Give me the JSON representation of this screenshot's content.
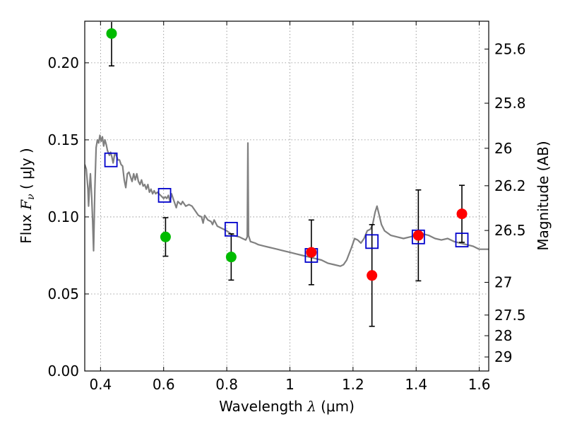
{
  "chart_data": {
    "type": "scatter",
    "title": "",
    "xlabel": "Wavelength  λ (μm)",
    "ylabel": "Flux  Fν  ( μJy )",
    "ylabel_parts": {
      "pre": "Flux  ",
      "sym": "F",
      "sub": "ν",
      "post": "  ( μJy )"
    },
    "xlabel_parts": {
      "pre": "Wavelength  ",
      "sym": "λ",
      "post": " (μm)"
    },
    "y2label": "Magnitude (AB)",
    "xlim": [
      0.35,
      1.63
    ],
    "ylim": [
      0.0,
      0.227
    ],
    "grid": true,
    "x_ticks": [
      0.4,
      0.6,
      0.8,
      1.0,
      1.2,
      1.4,
      1.6
    ],
    "x_tick_labels": [
      "0.4",
      "0.6",
      "0.8",
      "1",
      "1.2",
      "1.4",
      "1.6"
    ],
    "y_ticks": [
      0.0,
      0.05,
      0.1,
      0.15,
      0.2
    ],
    "y_tick_labels": [
      "0.00",
      "0.05",
      "0.10",
      "0.15",
      "0.20"
    ],
    "y2_ticks": [
      25.6,
      25.8,
      26,
      26.2,
      26.5,
      27,
      27.5,
      28,
      29
    ],
    "y2_tick_labels": [
      "25.6",
      "25.8",
      "26",
      "26.2",
      "26.5",
      "27",
      "27.5",
      "28",
      "29"
    ],
    "series": [
      {
        "kind": "detections-green",
        "color": "#00bb00",
        "points": [
          {
            "x": 0.435,
            "y": 0.219,
            "err": 0.0
          },
          {
            "x": 0.606,
            "y": 0.087,
            "err": 0.0125
          },
          {
            "x": 0.814,
            "y": 0.074,
            "err": 0.015
          }
        ],
        "upper_error_open": [
          0.2265,
          0.0,
          0.0
        ],
        "lower_error": [
          0.198,
          0.0,
          0.0
        ]
      },
      {
        "kind": "detections-red",
        "color": "#ff0000",
        "points": [
          {
            "x": 1.068,
            "y": 0.077,
            "err": 0.021
          },
          {
            "x": 1.26,
            "y": 0.062,
            "err": 0.033
          },
          {
            "x": 1.407,
            "y": 0.088,
            "err": 0.0295
          },
          {
            "x": 1.545,
            "y": 0.102,
            "err": 0.0185
          }
        ]
      },
      {
        "kind": "model-bandpass",
        "color": "#0000cc",
        "marker": "open-square",
        "points": [
          {
            "x": 0.433,
            "y": 0.137
          },
          {
            "x": 0.603,
            "y": 0.114
          },
          {
            "x": 0.814,
            "y": 0.092
          },
          {
            "x": 1.068,
            "y": 0.075
          },
          {
            "x": 1.26,
            "y": 0.084
          },
          {
            "x": 1.407,
            "y": 0.087
          },
          {
            "x": 1.545,
            "y": 0.085
          }
        ]
      },
      {
        "kind": "model-spectrum",
        "color": "#808080",
        "line": [
          [
            0.35,
            0.134
          ],
          [
            0.355,
            0.131
          ],
          [
            0.36,
            0.118
          ],
          [
            0.362,
            0.107
          ],
          [
            0.365,
            0.119
          ],
          [
            0.368,
            0.128
          ],
          [
            0.372,
            0.113
          ],
          [
            0.375,
            0.097
          ],
          [
            0.378,
            0.078
          ],
          [
            0.382,
            0.118
          ],
          [
            0.386,
            0.145
          ],
          [
            0.39,
            0.15
          ],
          [
            0.394,
            0.148
          ],
          [
            0.398,
            0.153
          ],
          [
            0.402,
            0.149
          ],
          [
            0.406,
            0.152
          ],
          [
            0.41,
            0.146
          ],
          [
            0.414,
            0.15
          ],
          [
            0.418,
            0.147
          ],
          [
            0.422,
            0.143
          ],
          [
            0.428,
            0.14
          ],
          [
            0.432,
            0.142
          ],
          [
            0.436,
            0.139
          ],
          [
            0.44,
            0.135
          ],
          [
            0.445,
            0.141
          ],
          [
            0.45,
            0.14
          ],
          [
            0.455,
            0.137
          ],
          [
            0.46,
            0.137
          ],
          [
            0.465,
            0.134
          ],
          [
            0.47,
            0.133
          ],
          [
            0.475,
            0.124
          ],
          [
            0.48,
            0.119
          ],
          [
            0.485,
            0.128
          ],
          [
            0.49,
            0.129
          ],
          [
            0.495,
            0.126
          ],
          [
            0.5,
            0.123
          ],
          [
            0.505,
            0.128
          ],
          [
            0.51,
            0.124
          ],
          [
            0.515,
            0.128
          ],
          [
            0.52,
            0.123
          ],
          [
            0.525,
            0.121
          ],
          [
            0.53,
            0.124
          ],
          [
            0.535,
            0.12
          ],
          [
            0.54,
            0.121
          ],
          [
            0.545,
            0.118
          ],
          [
            0.55,
            0.121
          ],
          [
            0.555,
            0.116
          ],
          [
            0.56,
            0.118
          ],
          [
            0.565,
            0.115
          ],
          [
            0.57,
            0.117
          ],
          [
            0.575,
            0.115
          ],
          [
            0.58,
            0.116
          ],
          [
            0.59,
            0.114
          ],
          [
            0.6,
            0.112
          ],
          [
            0.605,
            0.113
          ],
          [
            0.61,
            0.112
          ],
          [
            0.615,
            0.114
          ],
          [
            0.62,
            0.11
          ],
          [
            0.625,
            0.115
          ],
          [
            0.63,
            0.112
          ],
          [
            0.64,
            0.106
          ],
          [
            0.645,
            0.11
          ],
          [
            0.655,
            0.108
          ],
          [
            0.66,
            0.11
          ],
          [
            0.67,
            0.107
          ],
          [
            0.68,
            0.108
          ],
          [
            0.69,
            0.107
          ],
          [
            0.7,
            0.104
          ],
          [
            0.71,
            0.101
          ],
          [
            0.72,
            0.1
          ],
          [
            0.725,
            0.096
          ],
          [
            0.73,
            0.101
          ],
          [
            0.74,
            0.098
          ],
          [
            0.75,
            0.097
          ],
          [
            0.755,
            0.095
          ],
          [
            0.76,
            0.098
          ],
          [
            0.77,
            0.094
          ],
          [
            0.78,
            0.093
          ],
          [
            0.79,
            0.092
          ],
          [
            0.8,
            0.091
          ],
          [
            0.82,
            0.088
          ],
          [
            0.84,
            0.087
          ],
          [
            0.85,
            0.086
          ],
          [
            0.86,
            0.085
          ],
          [
            0.865,
            0.087
          ],
          [
            0.867,
            0.148
          ],
          [
            0.869,
            0.088
          ],
          [
            0.875,
            0.084
          ],
          [
            0.89,
            0.083
          ],
          [
            0.9,
            0.082
          ],
          [
            0.92,
            0.081
          ],
          [
            0.94,
            0.08
          ],
          [
            0.96,
            0.079
          ],
          [
            0.98,
            0.078
          ],
          [
            1.0,
            0.077
          ],
          [
            1.02,
            0.076
          ],
          [
            1.04,
            0.075
          ],
          [
            1.06,
            0.074
          ],
          [
            1.08,
            0.073
          ],
          [
            1.1,
            0.072
          ],
          [
            1.12,
            0.07
          ],
          [
            1.14,
            0.069
          ],
          [
            1.16,
            0.068
          ],
          [
            1.17,
            0.069
          ],
          [
            1.18,
            0.072
          ],
          [
            1.195,
            0.08
          ],
          [
            1.205,
            0.086
          ],
          [
            1.215,
            0.085
          ],
          [
            1.225,
            0.083
          ],
          [
            1.235,
            0.086
          ],
          [
            1.245,
            0.091
          ],
          [
            1.255,
            0.092
          ],
          [
            1.262,
            0.095
          ],
          [
            1.27,
            0.103
          ],
          [
            1.276,
            0.107
          ],
          [
            1.282,
            0.102
          ],
          [
            1.29,
            0.095
          ],
          [
            1.3,
            0.091
          ],
          [
            1.32,
            0.088
          ],
          [
            1.34,
            0.087
          ],
          [
            1.36,
            0.086
          ],
          [
            1.38,
            0.087
          ],
          [
            1.4,
            0.088
          ],
          [
            1.42,
            0.089
          ],
          [
            1.44,
            0.088
          ],
          [
            1.46,
            0.086
          ],
          [
            1.48,
            0.085
          ],
          [
            1.5,
            0.086
          ],
          [
            1.52,
            0.084
          ],
          [
            1.54,
            0.083
          ],
          [
            1.56,
            0.082
          ],
          [
            1.58,
            0.081
          ],
          [
            1.6,
            0.079
          ],
          [
            1.63,
            0.079
          ]
        ]
      }
    ]
  }
}
